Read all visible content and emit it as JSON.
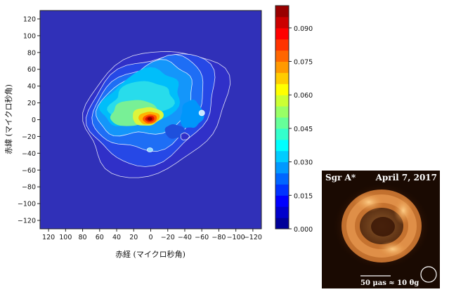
{
  "chart_data": [
    {
      "type": "heatmap",
      "title": "",
      "xlabel": "赤経 (マイクロ秒角)",
      "ylabel": "赤緯 (マイクロ秒角)",
      "xlim": [
        130,
        -130
      ],
      "ylim": [
        -130,
        130
      ],
      "x_ticks": [
        120,
        100,
        80,
        60,
        40,
        20,
        0,
        -20,
        -40,
        -60,
        -80,
        -100,
        -120
      ],
      "y_ticks": [
        120,
        100,
        80,
        60,
        40,
        20,
        0,
        -20,
        -40,
        -60,
        -80,
        -100,
        -120
      ],
      "grid": false,
      "colormap": "jet",
      "colorbar": {
        "range": [
          0.0,
          0.1
        ],
        "ticks": [
          "0.000",
          "0.015",
          "0.030",
          "0.045",
          "0.060",
          "0.075",
          "0.090"
        ],
        "tick_values": [
          0.0,
          0.015,
          0.03,
          0.045,
          0.06,
          0.075,
          0.09
        ],
        "levels": 20
      },
      "peak": {
        "x": 0,
        "y": 0,
        "value": 0.095
      },
      "background_value": 0.0
    },
    {
      "type": "image",
      "left_label": "Sgr A*",
      "right_label": "April 7, 2017",
      "scale_bar_label": "50 μas ≈ 10 θg"
    }
  ],
  "colors": {
    "background_blue": "#3030b8",
    "contour_line": "#ffffff",
    "peak_red": "#8b0000",
    "inset_bg": "#1a0a02",
    "inset_ring": "#e08a3a"
  }
}
